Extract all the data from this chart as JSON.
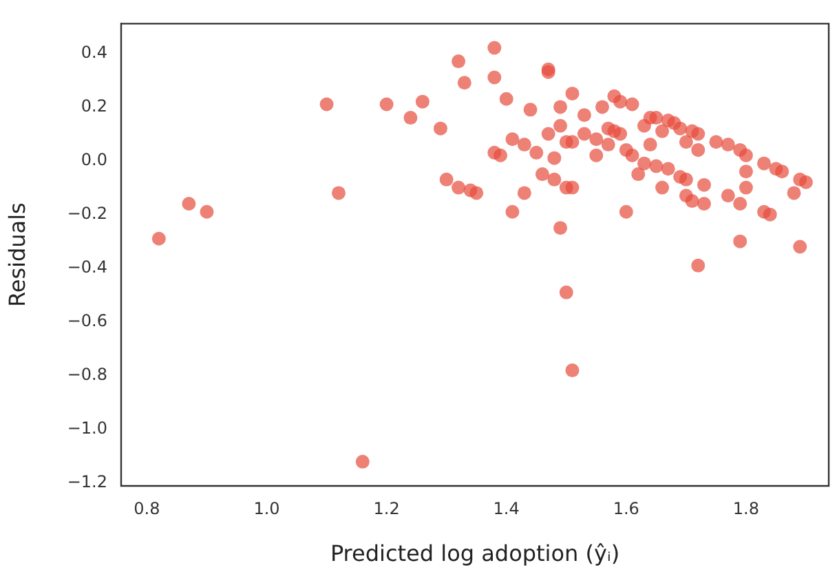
{
  "chart_data": {
    "type": "scatter",
    "xlabel": "Predicted log adoption (ŷᵢ)",
    "ylabel": "Residuals",
    "color": "#e74c3c",
    "marker": "circle",
    "grid": false,
    "legend": false,
    "xlim": [
      0.757,
      1.938
    ],
    "xticks": [
      {
        "value": 0.8,
        "label": "0.8"
      },
      {
        "value": 1,
        "label": "1.0"
      },
      {
        "value": 1.2,
        "label": "1.2"
      },
      {
        "value": 1.4,
        "label": "1.4"
      },
      {
        "value": 1.6,
        "label": "1.6"
      },
      {
        "value": 1.8,
        "label": "1.8"
      }
    ],
    "ylim": [
      -1.21,
      0.51
    ],
    "yticks": [
      {
        "value": -1.2,
        "label": "−1.2"
      },
      {
        "value": -1,
        "label": "−1.0"
      },
      {
        "value": -0.8,
        "label": "−0.8"
      },
      {
        "value": -0.6,
        "label": "−0.6"
      },
      {
        "value": -0.4,
        "label": "−0.4"
      },
      {
        "value": -0.2,
        "label": "−0.2"
      },
      {
        "value": 0,
        "label": "0.0"
      },
      {
        "value": 0.2,
        "label": "0.2"
      },
      {
        "value": 0.4,
        "label": "0.4"
      }
    ],
    "x": [
      0.82,
      0.87,
      0.9,
      1.1,
      1.12,
      1.16,
      1.2,
      1.24,
      1.26,
      1.29,
      1.3,
      1.32,
      1.32,
      1.33,
      1.34,
      1.35,
      1.38,
      1.39,
      1.38,
      1.38,
      1.4,
      1.44,
      1.47,
      1.47,
      1.51,
      1.49,
      1.53,
      1.56,
      1.58,
      1.59,
      1.61,
      1.49,
      1.47,
      1.41,
      1.43,
      1.45,
      1.48,
      1.5,
      1.51,
      1.53,
      1.57,
      1.58,
      1.59,
      1.55,
      1.43,
      1.46,
      1.48,
      1.5,
      1.51,
      1.41,
      1.49,
      1.6,
      1.62,
      1.64,
      1.63,
      1.64,
      1.65,
      1.67,
      1.68,
      1.55,
      1.57,
      1.6,
      1.61,
      1.63,
      1.65,
      1.67,
      1.69,
      1.7,
      1.73,
      1.66,
      1.7,
      1.71,
      1.73,
      1.66,
      1.7,
      1.72,
      1.72,
      1.69,
      1.71,
      1.75,
      1.77,
      1.79,
      1.8,
      1.83,
      1.85,
      1.86,
      1.8,
      1.8,
      1.77,
      1.79,
      1.83,
      1.84,
      1.79,
      1.72,
      1.89,
      1.9,
      1.88,
      1.89,
      1.5,
      1.51
    ],
    "values": [
      -0.29,
      -0.16,
      -0.19,
      0.21,
      -0.12,
      -1.12,
      0.21,
      0.16,
      0.22,
      0.12,
      -0.07,
      0.37,
      -0.1,
      0.29,
      -0.11,
      -0.12,
      0.03,
      0.02,
      0.42,
      0.31,
      0.23,
      0.19,
      0.34,
      0.33,
      0.25,
      0.2,
      0.17,
      0.2,
      0.24,
      0.22,
      0.21,
      0.13,
      0.1,
      0.08,
      0.06,
      0.03,
      0.01,
      0.07,
      0.07,
      0.1,
      0.12,
      0.11,
      0.1,
      0.02,
      -0.12,
      -0.05,
      -0.07,
      -0.1,
      -0.1,
      -0.19,
      -0.25,
      -0.19,
      -0.05,
      0.06,
      0.13,
      0.16,
      0.16,
      0.15,
      0.14,
      0.08,
      0.06,
      0.04,
      0.02,
      -0.01,
      -0.02,
      -0.03,
      -0.06,
      -0.07,
      -0.09,
      -0.1,
      -0.13,
      -0.15,
      -0.16,
      0.11,
      0.07,
      0.1,
      0.04,
      0.12,
      0.11,
      0.07,
      0.06,
      0.04,
      0.02,
      -0.01,
      -0.03,
      -0.04,
      -0.04,
      -0.1,
      -0.13,
      -0.16,
      -0.19,
      -0.2,
      -0.3,
      -0.39,
      -0.07,
      -0.08,
      -0.12,
      -0.32,
      -0.49,
      -0.78
    ]
  }
}
